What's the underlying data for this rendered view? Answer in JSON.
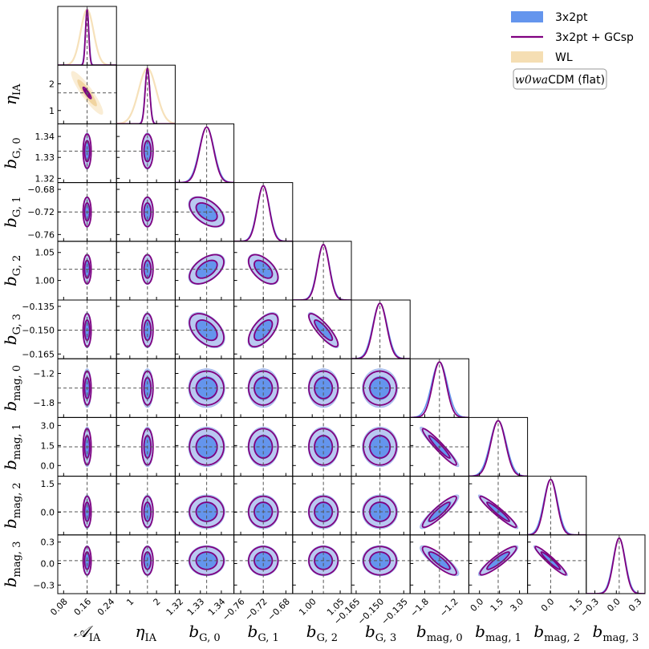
{
  "chart_data": {
    "type": "corner",
    "model_label": {
      "italic": "w0wa",
      "rest": "CDM (flat)"
    },
    "legend": [
      {
        "name": "3x2pt",
        "color": "#6495ED",
        "style": "filled"
      },
      {
        "name": "3x2pt + GCsp",
        "color": "#800080",
        "style": "line"
      },
      {
        "name": "WL",
        "color": "#F5DEB3",
        "style": "filled"
      }
    ],
    "params": [
      {
        "key": "A_IA",
        "main": "𝒜",
        "sub": "IA",
        "fid": 0.16,
        "range": [
          0.06,
          0.26
        ],
        "ticks": [
          "0.08",
          "0.16",
          "0.24"
        ],
        "tickvals": [
          0.08,
          0.16,
          0.24
        ]
      },
      {
        "key": "eta_IA",
        "main": "η",
        "sub": "IA",
        "fid": 1.66,
        "range": [
          0.5,
          2.7
        ],
        "ticks": [
          "1",
          "2"
        ],
        "tickvals": [
          1,
          2
        ]
      },
      {
        "key": "bG0",
        "main": "b",
        "sub": "G, 0",
        "fid": 1.333,
        "range": [
          1.318,
          1.346
        ],
        "ticks": [
          "1.32",
          "1.33",
          "1.34"
        ],
        "tickvals": [
          1.32,
          1.33,
          1.34
        ]
      },
      {
        "key": "bG1",
        "main": "b",
        "sub": "G, 1",
        "fid": -0.72,
        "range": [
          -0.772,
          -0.668
        ],
        "ticks": [
          "−0.76",
          "−0.72",
          "−0.68"
        ],
        "tickvals": [
          -0.76,
          -0.72,
          -0.68
        ]
      },
      {
        "key": "bG2",
        "main": "b",
        "sub": "G, 2",
        "fid": 1.02,
        "range": [
          0.965,
          1.07
        ],
        "ticks": [
          "1.00",
          "1.05"
        ],
        "tickvals": [
          1.0,
          1.05
        ]
      },
      {
        "key": "bG3",
        "main": "b",
        "sub": "G, 3",
        "fid": -0.15,
        "range": [
          -0.168,
          -0.131
        ],
        "ticks": [
          "−0.165",
          "−0.150",
          "−0.135"
        ],
        "tickvals": [
          -0.165,
          -0.15,
          -0.135
        ]
      },
      {
        "key": "bmag0",
        "main": "b",
        "sub": "mag, 0",
        "fid": -1.5,
        "range": [
          -2.1,
          -0.9
        ],
        "ticks": [
          "−1.8",
          "−1.2"
        ],
        "tickvals": [
          -1.8,
          -1.2
        ]
      },
      {
        "key": "bmag1",
        "main": "b",
        "sub": "mag, 1",
        "fid": 1.4,
        "range": [
          -0.8,
          3.6
        ],
        "ticks": [
          "0.0",
          "1.5",
          "3.0"
        ],
        "tickvals": [
          0.0,
          1.5,
          3.0
        ]
      },
      {
        "key": "bmag2",
        "main": "b",
        "sub": "mag, 2",
        "fid": 0.02,
        "range": [
          -1.2,
          1.9
        ],
        "ticks": [
          "0.0",
          "1.5"
        ],
        "tickvals": [
          0.0,
          1.5
        ]
      },
      {
        "key": "bmag3",
        "main": "b",
        "sub": "mag, 3",
        "fid": 0.04,
        "range": [
          -0.42,
          0.4
        ],
        "ticks": [
          "−0.3",
          "0.0",
          "0.3"
        ],
        "tickvals": [
          -0.3,
          0.0,
          0.3
        ]
      }
    ],
    "sigma_3x2pt": [
      0.006,
      0.09,
      0.0035,
      0.011,
      0.011,
      0.0045,
      0.16,
      0.6,
      0.36,
      0.085
    ],
    "sigma_3x2pt_GCsp": [
      0.0055,
      0.085,
      0.0033,
      0.0105,
      0.0105,
      0.0042,
      0.14,
      0.55,
      0.33,
      0.08
    ],
    "sigma_WL": {
      "A_IA": 0.022,
      "eta_IA": 0.33
    },
    "correlations": {
      "A_IA-eta_IA": -0.9,
      "bG0-bG1": -0.5,
      "bG0-bG2": 0.5,
      "bG1-bG2": -0.55,
      "bG0-bG3": -0.45,
      "bG1-bG3": 0.6,
      "bG2-bG3": -0.85,
      "bmag0-bmag1": -0.95,
      "bmag0-bmag2": 0.9,
      "bmag0-bmag3": -0.85,
      "bmag1-bmag2": -0.95,
      "bmag1-bmag3": 0.9,
      "bmag2-bmag3": -0.95
    }
  }
}
